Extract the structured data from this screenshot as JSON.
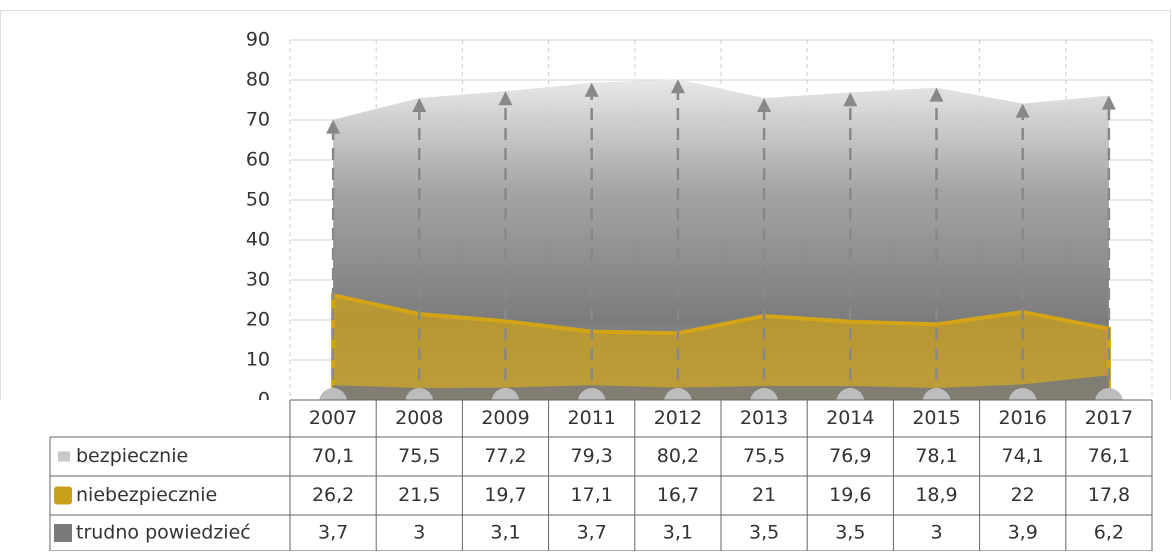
{
  "chart_data": {
    "type": "area",
    "categories": [
      "2007",
      "2008",
      "2009",
      "2011",
      "2012",
      "2013",
      "2014",
      "2015",
      "2016",
      "2017"
    ],
    "series": [
      {
        "name": "bezpiecznie",
        "color": "#c8c8c8",
        "values": [
          70.1,
          75.5,
          77.2,
          79.3,
          80.2,
          75.5,
          76.9,
          78.1,
          74.1,
          76.1
        ],
        "value_labels": [
          "70,1",
          "75,5",
          "77,2",
          "79,3",
          "80,2",
          "75,5",
          "76,9",
          "78,1",
          "74,1",
          "76,1"
        ]
      },
      {
        "name": "niebezpiecznie",
        "color": "#c9a01c",
        "values": [
          26.2,
          21.5,
          19.7,
          17.1,
          16.7,
          21,
          19.6,
          18.9,
          22,
          17.8
        ],
        "value_labels": [
          "26,2",
          "21,5",
          "19,7",
          "17,1",
          "16,7",
          "21",
          "19,6",
          "18,9",
          "22",
          "17,8"
        ]
      },
      {
        "name": "trudno powiedzieć",
        "color": "#7a7a7a",
        "values": [
          3.7,
          3,
          3.1,
          3.7,
          3.1,
          3.5,
          3.5,
          3,
          3.9,
          6.2
        ],
        "value_labels": [
          "3,7",
          "3",
          "3,1",
          "3,7",
          "3,1",
          "3,5",
          "3,5",
          "3",
          "3,9",
          "6,2"
        ]
      }
    ],
    "ylim": [
      0,
      90
    ],
    "yticks": [
      0,
      10,
      20,
      30,
      40,
      50,
      60,
      70,
      80,
      90
    ],
    "grid": true
  }
}
